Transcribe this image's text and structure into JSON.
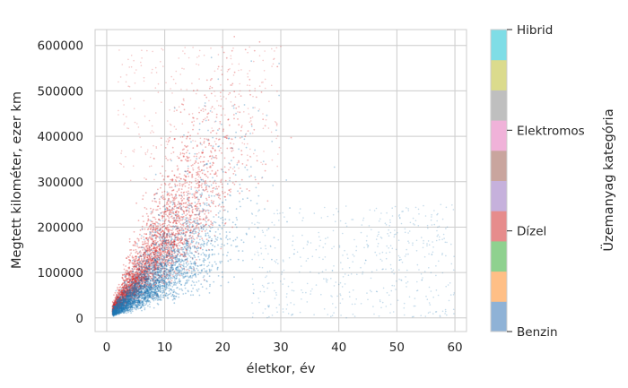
{
  "chart_data": {
    "type": "scatter",
    "title": "",
    "xlabel": "életkor, év",
    "ylabel": "Megtett kilométer, ezer km",
    "xlim": [
      -2,
      62
    ],
    "ylim": [
      -30000,
      635000
    ],
    "x_ticks": [
      0,
      10,
      20,
      30,
      40,
      50,
      60
    ],
    "y_ticks": [
      0,
      100000,
      200000,
      300000,
      400000,
      500000,
      600000
    ],
    "grid": true,
    "legend": "none",
    "series": [
      {
        "category": "Benzin",
        "color": "#1f77b4",
        "clusters": [
          {
            "age_range": [
              1,
              25
            ],
            "km_median_per_year": 10000,
            "density": "high"
          },
          {
            "age_range": [
              25,
              60
            ],
            "km_range": [
              0,
              250000
            ],
            "density": "sparse"
          }
        ]
      },
      {
        "category": "Dízel",
        "color": "#d62728",
        "clusters": [
          {
            "age_range": [
              1,
              25
            ],
            "km_median_per_year": 17000,
            "density": "high"
          },
          {
            "age_range": [
              2,
              30
            ],
            "km_range": [
              300000,
              600000
            ],
            "density": "sparse"
          }
        ]
      }
    ],
    "colorbar": {
      "label": "Üzemanyag kategória",
      "colors": [
        "#8fb2d6",
        "#ffbf86",
        "#8fd18f",
        "#e68c8c",
        "#c6b1dc",
        "#c9a59e",
        "#f0b2d9",
        "#bfbfbf",
        "#dbdb8d",
        "#7fdde6"
      ],
      "tick_labels": [
        "Benzin",
        "Dízel",
        "Elektromos",
        "Hibrid"
      ]
    }
  }
}
